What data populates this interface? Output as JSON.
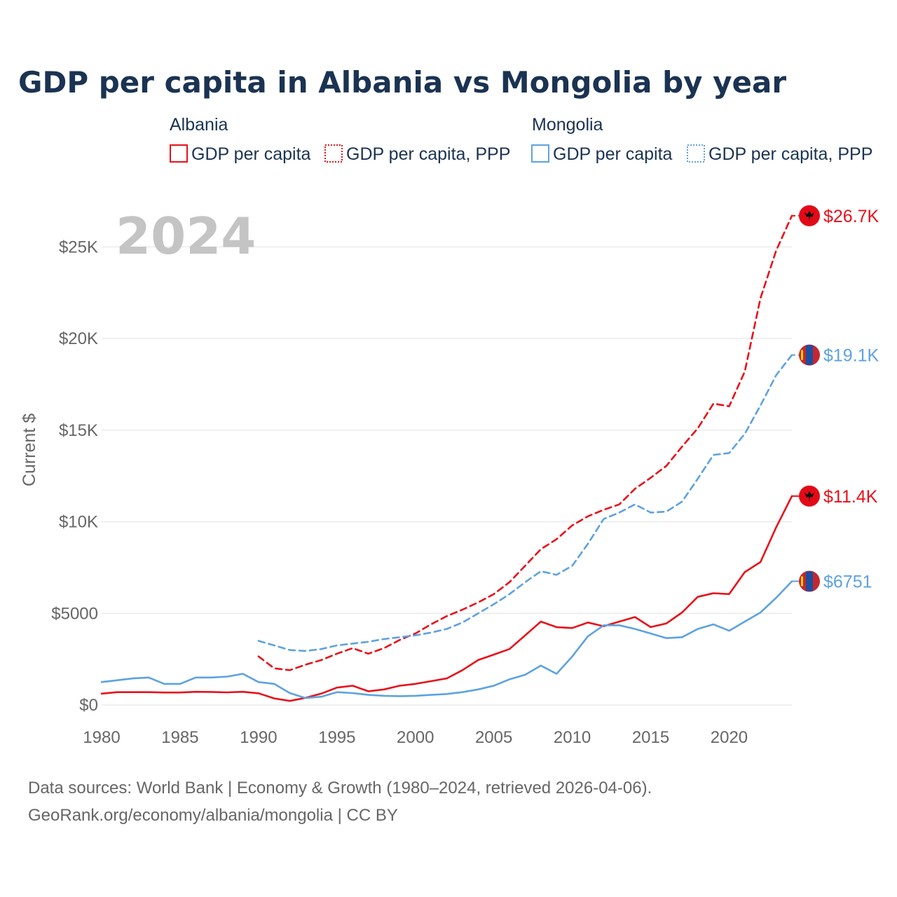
{
  "chart_data": {
    "type": "line",
    "title": "GDP per capita in Albania vs Mongolia by year",
    "ylabel": "Current $",
    "year_label": "2024",
    "xlim": [
      1980,
      2024
    ],
    "ylim": [
      0,
      27000
    ],
    "x_ticks": [
      1980,
      1985,
      1990,
      1995,
      2000,
      2005,
      2010,
      2015,
      2020
    ],
    "x_tick_labels": [
      "1980",
      "1985",
      "1990",
      "1995",
      "2000",
      "2005",
      "2010",
      "2015",
      "2020"
    ],
    "y_ticks": [
      0,
      5000,
      10000,
      15000,
      20000,
      25000
    ],
    "y_tick_labels": [
      "$0",
      "$5000",
      "$10K",
      "$15K",
      "$20K",
      "$25K"
    ],
    "legend": {
      "groups": [
        {
          "country": "Albania",
          "color": "#e8111a",
          "items": [
            "GDP per capita",
            "GDP per capita, PPP"
          ]
        },
        {
          "country": "Mongolia",
          "color": "#5ea2e0",
          "items": [
            "GDP per capita",
            "GDP per capita, PPP"
          ]
        }
      ]
    },
    "series": [
      {
        "name": "Albania GDP per capita",
        "country": "Albania",
        "color": "#e8111a",
        "dashed": false,
        "end_label": "$11.4K",
        "x": [
          1980,
          1981,
          1982,
          1983,
          1984,
          1985,
          1986,
          1987,
          1988,
          1989,
          1990,
          1991,
          1992,
          1993,
          1994,
          1995,
          1996,
          1997,
          1998,
          1999,
          2000,
          2001,
          2002,
          2003,
          2004,
          2005,
          2006,
          2007,
          2008,
          2009,
          2010,
          2011,
          2012,
          2013,
          2014,
          2015,
          2016,
          2017,
          2018,
          2019,
          2020,
          2021,
          2022,
          2023,
          2024
        ],
        "y": [
          620,
          700,
          700,
          700,
          680,
          680,
          720,
          710,
          690,
          720,
          640,
          360,
          220,
          390,
          620,
          950,
          1050,
          750,
          850,
          1050,
          1150,
          1300,
          1450,
          1900,
          2450,
          2750,
          3050,
          3800,
          4550,
          4250,
          4200,
          4500,
          4300,
          4550,
          4800,
          4250,
          4450,
          5050,
          5900,
          6100,
          6050,
          7250,
          7800,
          9700,
          11400
        ]
      },
      {
        "name": "Albania GDP per capita, PPP",
        "country": "Albania",
        "color": "#e8111a",
        "dashed": true,
        "end_label": "$26.7K",
        "x": [
          1990,
          1991,
          1992,
          1993,
          1994,
          1995,
          1996,
          1997,
          1998,
          1999,
          2000,
          2001,
          2002,
          2003,
          2004,
          2005,
          2006,
          2007,
          2008,
          2009,
          2010,
          2011,
          2012,
          2013,
          2014,
          2015,
          2016,
          2017,
          2018,
          2019,
          2020,
          2021,
          2022,
          2023,
          2024
        ],
        "y": [
          2650,
          2000,
          1900,
          2200,
          2450,
          2800,
          3100,
          2800,
          3100,
          3550,
          3900,
          4400,
          4850,
          5200,
          5600,
          6050,
          6700,
          7600,
          8500,
          9050,
          9800,
          10300,
          10650,
          10950,
          11800,
          12400,
          13050,
          14100,
          15100,
          16450,
          16300,
          18200,
          22200,
          24800,
          26700
        ]
      },
      {
        "name": "Mongolia GDP per capita",
        "country": "Mongolia",
        "color": "#5ea2e0",
        "dashed": false,
        "end_label": "$6751",
        "x": [
          1980,
          1981,
          1982,
          1983,
          1984,
          1985,
          1986,
          1987,
          1988,
          1989,
          1990,
          1991,
          1992,
          1993,
          1994,
          1995,
          1996,
          1997,
          1998,
          1999,
          2000,
          2001,
          2002,
          2003,
          2004,
          2005,
          2006,
          2007,
          2008,
          2009,
          2010,
          2011,
          2012,
          2013,
          2014,
          2015,
          2016,
          2017,
          2018,
          2019,
          2020,
          2021,
          2022,
          2023,
          2024
        ],
        "y": [
          1250,
          1350,
          1450,
          1500,
          1150,
          1150,
          1500,
          1500,
          1550,
          1700,
          1250,
          1150,
          650,
          380,
          450,
          700,
          650,
          550,
          500,
          480,
          500,
          550,
          600,
          700,
          850,
          1050,
          1400,
          1650,
          2150,
          1700,
          2650,
          3750,
          4350,
          4350,
          4150,
          3900,
          3650,
          3700,
          4150,
          4400,
          4050,
          4550,
          5050,
          5850,
          6751
        ]
      },
      {
        "name": "Mongolia GDP per capita, PPP",
        "country": "Mongolia",
        "color": "#5ea2e0",
        "dashed": true,
        "end_label": "$19.1K",
        "x": [
          1990,
          1991,
          1992,
          1993,
          1994,
          1995,
          1996,
          1997,
          1998,
          1999,
          2000,
          2001,
          2002,
          2003,
          2004,
          2005,
          2006,
          2007,
          2008,
          2009,
          2010,
          2011,
          2012,
          2013,
          2014,
          2015,
          2016,
          2017,
          2018,
          2019,
          2020,
          2021,
          2022,
          2023,
          2024
        ],
        "y": [
          3500,
          3250,
          3000,
          2950,
          3050,
          3250,
          3350,
          3450,
          3600,
          3700,
          3800,
          3950,
          4150,
          4500,
          5000,
          5500,
          6050,
          6700,
          7300,
          7100,
          7600,
          8800,
          10150,
          10500,
          10950,
          10500,
          10550,
          11100,
          12350,
          13650,
          13750,
          14800,
          16350,
          18000,
          19100
        ]
      }
    ],
    "source_lines": [
      "Data sources: World Bank | Economy & Growth (1980–2024, retrieved 2026-04-06).",
      "GeoRank.org/economy/albania/mongolia | CC BY"
    ]
  }
}
